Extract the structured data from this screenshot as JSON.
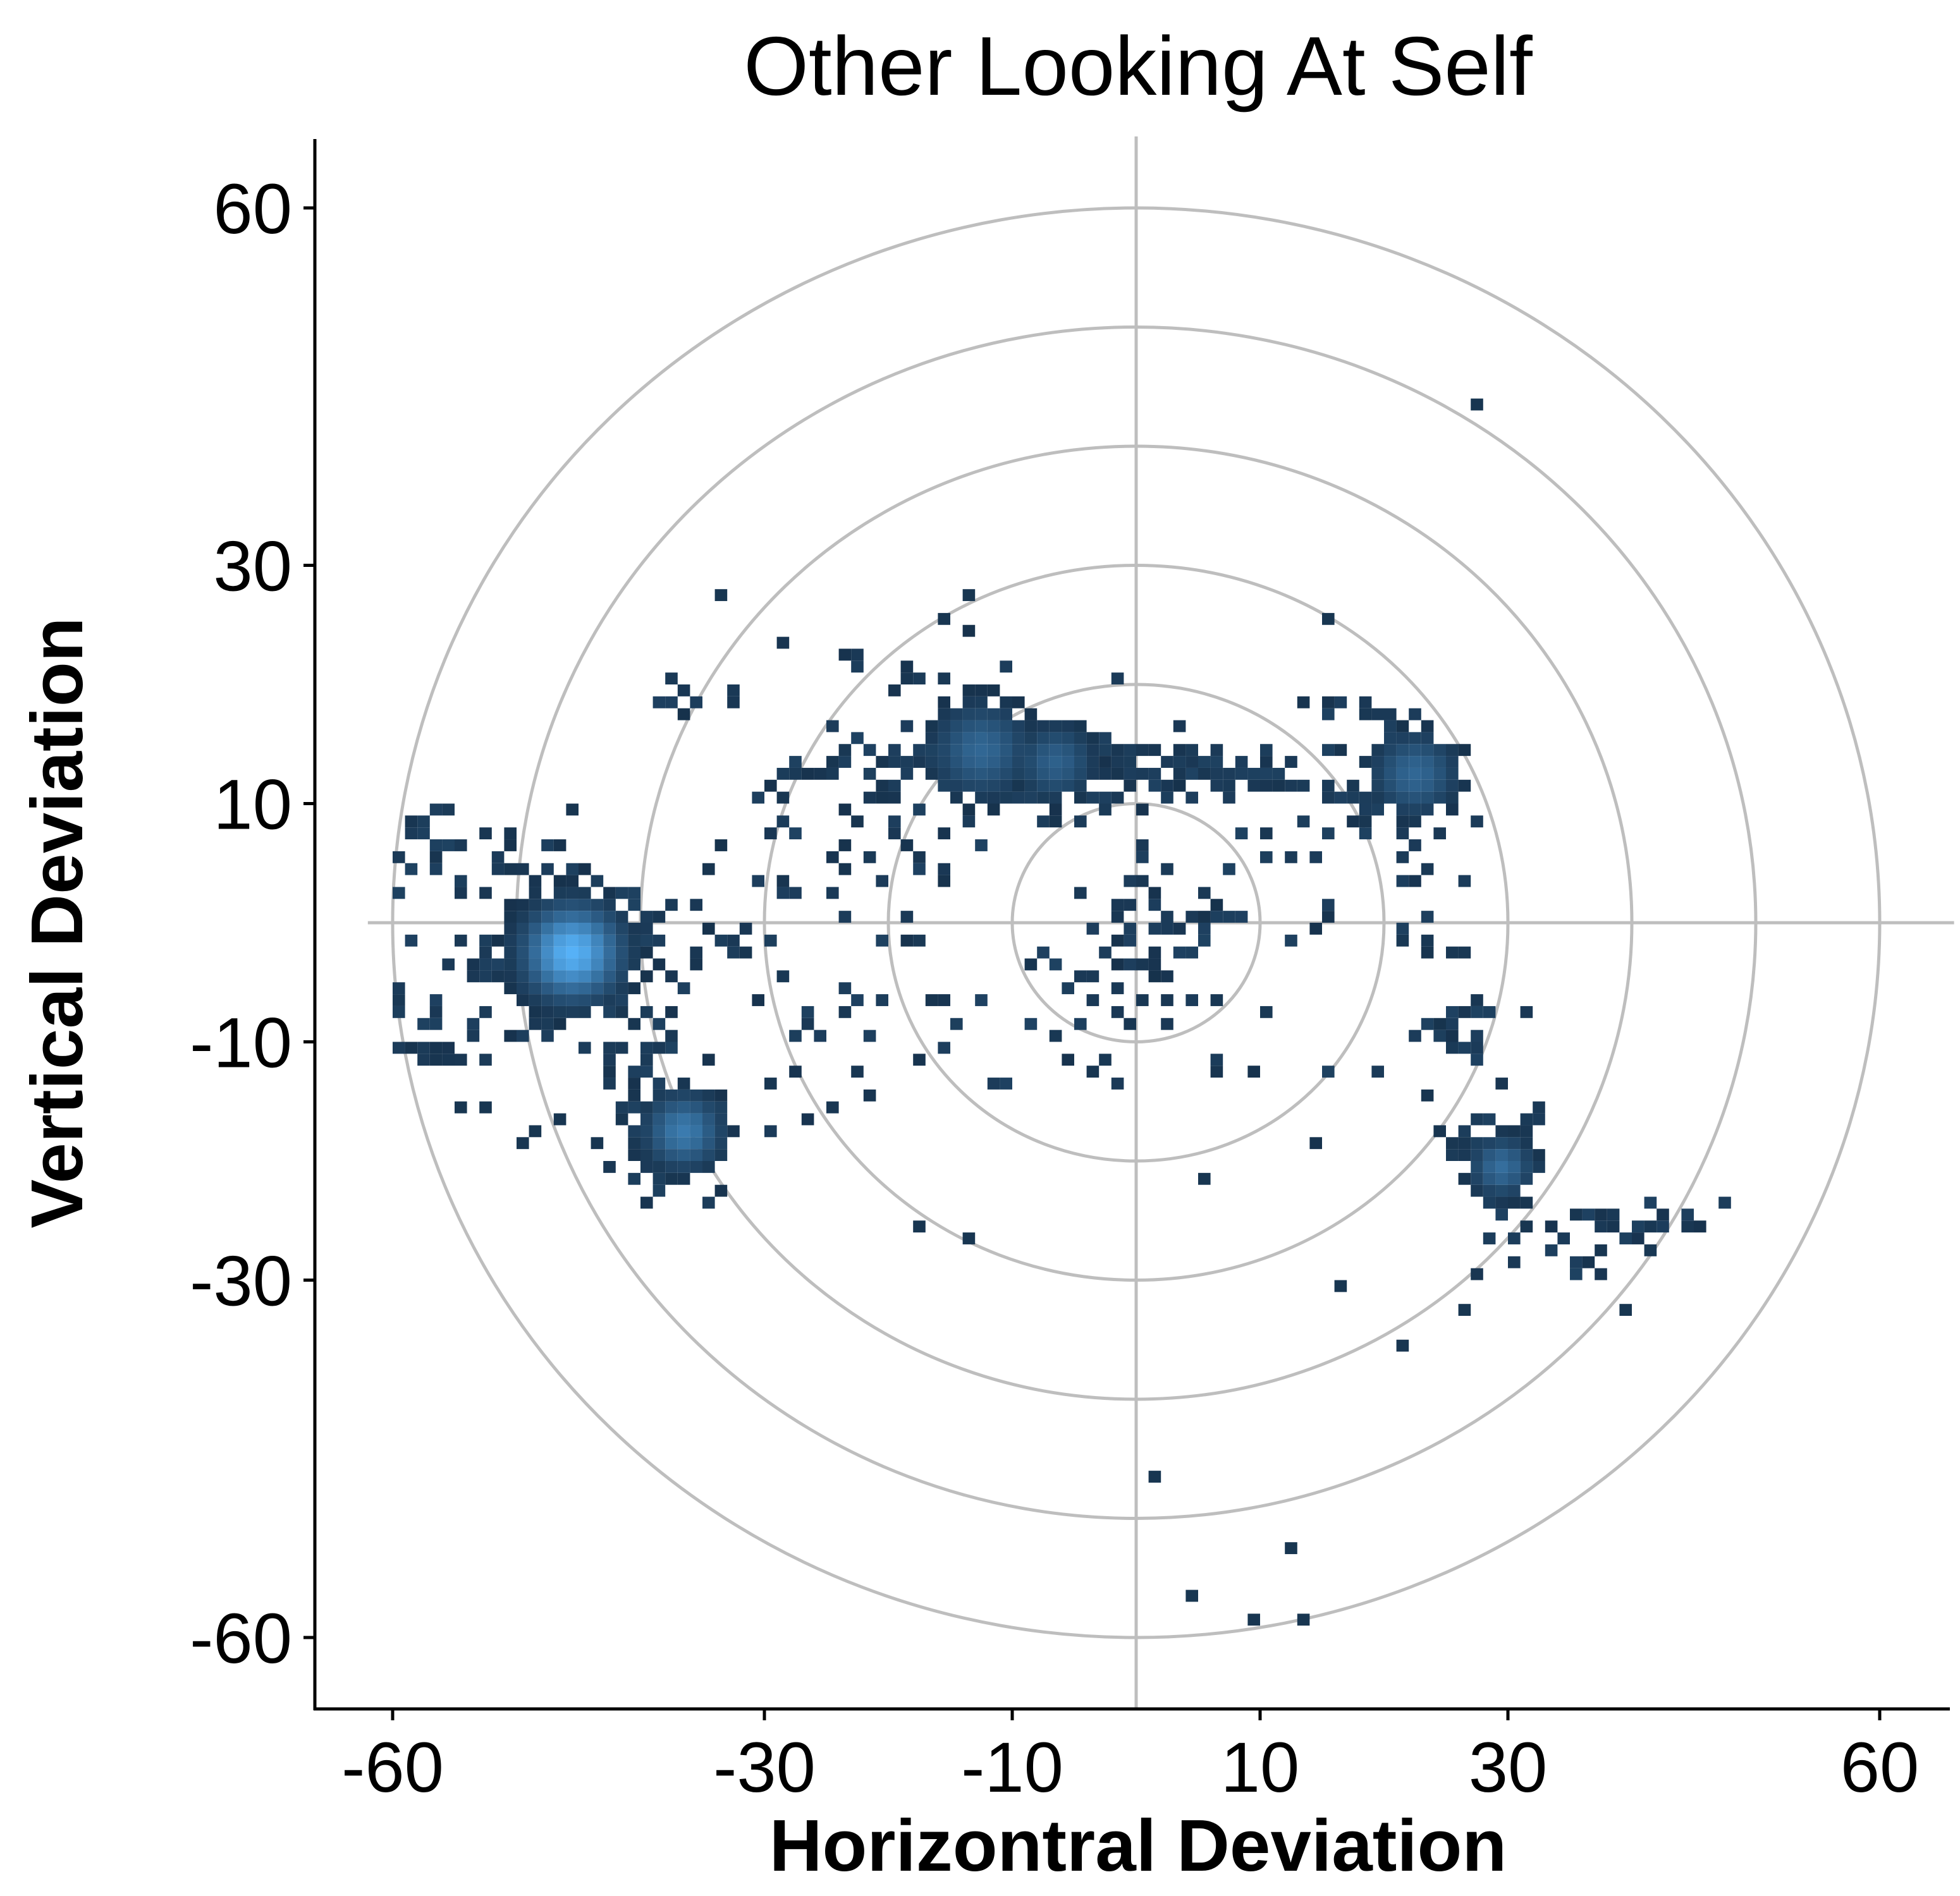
{
  "chart_data": {
    "type": "heatmap",
    "title": "Other Looking At Self",
    "xlabel": "Horizontral Deviation",
    "ylabel": "Vertical Deviation",
    "xlim": [
      -66,
      66
    ],
    "ylim": [
      -66,
      66
    ],
    "x_ticks": [
      -60,
      -30,
      -10,
      10,
      30,
      60
    ],
    "y_ticks": [
      60,
      30,
      10,
      -10,
      -30,
      -60
    ],
    "grid": false,
    "reference_circles_radii": [
      10,
      20,
      30,
      40,
      50,
      60
    ],
    "reference_lines": {
      "vertical_at_x": 0,
      "horizontal_at_y": 0
    },
    "colors": {
      "low": "#132b43",
      "high": "#56b1f7",
      "reference": "#bebebe"
    },
    "bin_size": 1,
    "dense_regions": [
      {
        "x": -46,
        "y": -2.5,
        "sd": 2.5,
        "weight": 1.0
      },
      {
        "x": -37,
        "y": -18,
        "sd": 2.0,
        "weight": 0.6
      },
      {
        "x": -13,
        "y": 14,
        "sd": 2.5,
        "weight": 0.45
      },
      {
        "x": -7,
        "y": 13,
        "sd": 2.0,
        "weight": 0.4
      },
      {
        "x": 22,
        "y": 12,
        "sd": 2.2,
        "weight": 0.45
      },
      {
        "x": 29,
        "y": -21,
        "sd": 1.6,
        "weight": 0.5
      }
    ],
    "point_clusters": [
      {
        "x": -46,
        "y": -2.5,
        "sx": 3.5,
        "sy": 2.0,
        "n": 120
      },
      {
        "x": -37,
        "y": -18,
        "sx": 2.5,
        "sy": 2.0,
        "n": 60
      },
      {
        "x": -40,
        "y": -11,
        "sx": 2.0,
        "sy": 4.0,
        "n": 35
      },
      {
        "x": -50,
        "y": 4,
        "sx": 5.0,
        "sy": 2.5,
        "n": 30
      },
      {
        "x": -53,
        "y": -8,
        "sx": 4.0,
        "sy": 2.5,
        "n": 25
      },
      {
        "x": -58,
        "y": 7,
        "sx": 1.2,
        "sy": 1.5,
        "n": 15
      },
      {
        "x": -58,
        "y": -11,
        "sx": 1.3,
        "sy": 1.2,
        "n": 12
      },
      {
        "x": -34,
        "y": 19,
        "sx": 2.5,
        "sy": 1.2,
        "n": 10
      },
      {
        "x": -15,
        "y": 14,
        "sx": 4.0,
        "sy": 2.0,
        "n": 70
      },
      {
        "x": -7,
        "y": 12.5,
        "sx": 3.0,
        "sy": 1.5,
        "n": 45
      },
      {
        "x": 2,
        "y": 13,
        "sx": 3.0,
        "sy": 1.5,
        "n": 40
      },
      {
        "x": 10,
        "y": 12,
        "sx": 3.0,
        "sy": 1.0,
        "n": 20
      },
      {
        "x": 21,
        "y": 12,
        "sx": 3.0,
        "sy": 2.2,
        "n": 55
      },
      {
        "x": 20,
        "y": 18,
        "sx": 3.0,
        "sy": 0.8,
        "n": 12
      },
      {
        "x": -21,
        "y": 9,
        "sx": 5.0,
        "sy": 3.5,
        "n": 40
      },
      {
        "x": 2,
        "y": 0,
        "sx": 3.0,
        "sy": 3.0,
        "n": 45
      },
      {
        "x": -2,
        "y": -5,
        "sx": 3.0,
        "sy": 2.0,
        "n": 15
      },
      {
        "x": 16,
        "y": 4,
        "sx": 5.0,
        "sy": 4.0,
        "n": 30
      },
      {
        "x": 25,
        "y": -8,
        "sx": 3.0,
        "sy": 4.0,
        "n": 25
      },
      {
        "x": 29,
        "y": -20,
        "sx": 2.0,
        "sy": 2.5,
        "n": 40
      },
      {
        "x": 40,
        "y": -25,
        "sx": 3.5,
        "sy": 1.5,
        "n": 20
      },
      {
        "x": 34,
        "y": -29,
        "sx": 4.0,
        "sy": 2.0,
        "n": 10
      },
      {
        "x": -30,
        "y": 0,
        "sx": 8.0,
        "sy": 5.0,
        "n": 40
      },
      {
        "x": -30,
        "y": -12,
        "sx": 6.0,
        "sy": 4.0,
        "n": 20
      },
      {
        "x": -10,
        "y": -10,
        "sx": 8.0,
        "sy": 3.0,
        "n": 15
      },
      {
        "x": 10,
        "y": -10,
        "sx": 8.0,
        "sy": 3.0,
        "n": 15
      },
      {
        "x": -15,
        "y": 22,
        "sx": 6.0,
        "sy": 2.0,
        "n": 12
      }
    ],
    "isolated_points": [
      [
        27,
        43
      ],
      [
        -34,
        27
      ],
      [
        -14,
        27
      ],
      [
        -16,
        25
      ],
      [
        15,
        25
      ],
      [
        -22,
        14
      ],
      [
        -25,
        13
      ],
      [
        -18,
        -26
      ],
      [
        -14,
        -27
      ],
      [
        5,
        -22
      ],
      [
        16,
        -31
      ],
      [
        21,
        -36
      ],
      [
        26,
        -33
      ],
      [
        39,
        -33
      ],
      [
        37,
        -28
      ],
      [
        35,
        -25
      ],
      [
        31,
        -26
      ],
      [
        1,
        -47
      ],
      [
        12,
        -53
      ],
      [
        4,
        -57
      ],
      [
        9,
        -58.5
      ],
      [
        13,
        -58.5
      ],
      [
        -50,
        -19
      ],
      [
        -47,
        -17
      ],
      [
        -49,
        -18
      ],
      [
        -55,
        -16
      ],
      [
        -53,
        -16
      ],
      [
        -44,
        -19
      ]
    ]
  }
}
